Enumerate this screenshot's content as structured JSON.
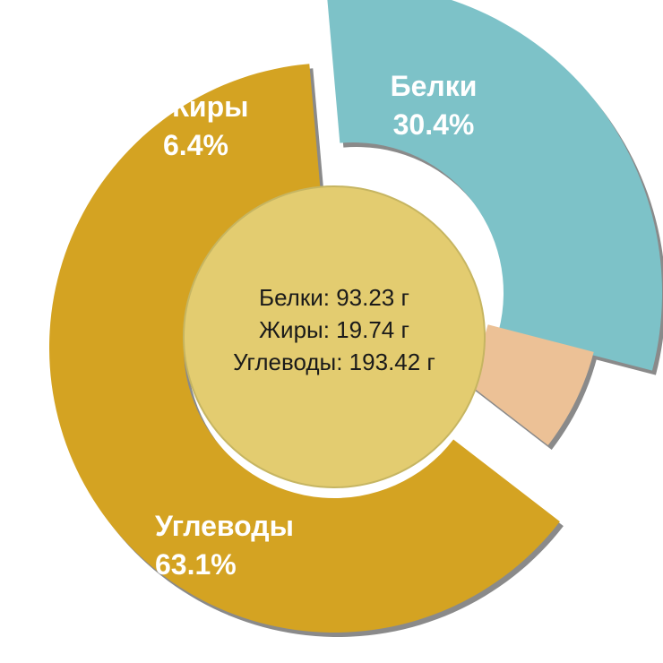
{
  "chart_data": {
    "type": "pie",
    "title": "",
    "slices": [
      {
        "name": "Белки",
        "percent_label": "30.4%",
        "value": 30.4,
        "color": "#7dc2c8"
      },
      {
        "name": "Жиры",
        "percent_label": "6.4%",
        "value": 6.4,
        "color": "#ecc196"
      },
      {
        "name": "Углеводы",
        "percent_label": "63.1%",
        "value": 63.1,
        "color": "#d4a322"
      }
    ],
    "center": {
      "color": "#e3cc70",
      "lines": [
        "Белки: 93.23 г",
        "Жиры: 19.74 г",
        "Углеводы: 193.42 г"
      ]
    }
  }
}
